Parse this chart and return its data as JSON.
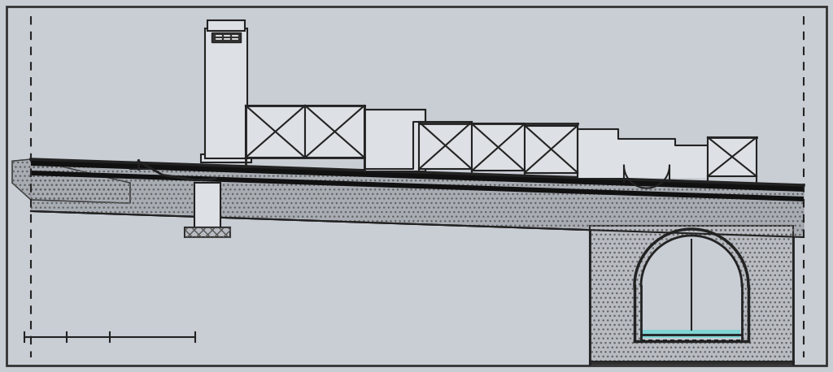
{
  "bg_color": "#c9cdd4",
  "border_color": "#333333",
  "line_color": "#222222",
  "stone_color": "#b8bcc2",
  "stone_dark": "#a8acb3",
  "water_color": "#80d4d4",
  "fill_light": "#dde0e4",
  "fill_bg": "#c9cdd4",
  "figsize": [
    10.24,
    4.58
  ],
  "dpi": 100
}
